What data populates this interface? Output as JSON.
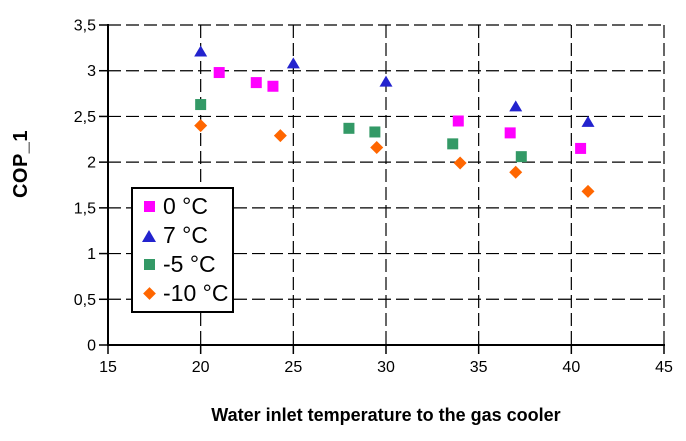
{
  "chart_data": {
    "type": "scatter",
    "title": "",
    "xlabel": "Water inlet temperature to the gas cooler",
    "ylabel": "COP_1",
    "xlim": [
      15,
      45
    ],
    "ylim": [
      0,
      3.5
    ],
    "x_ticks": [
      15,
      20,
      25,
      30,
      35,
      40,
      45
    ],
    "x_tick_labels": [
      "15",
      "20",
      "25",
      "30",
      "35",
      "40",
      "45"
    ],
    "y_ticks": [
      0,
      0.5,
      1,
      1.5,
      2,
      2.5,
      3,
      3.5
    ],
    "y_tick_labels": [
      "0",
      "0,5",
      "1",
      "1,5",
      "2",
      "2,5",
      "3",
      "3,5"
    ],
    "grid": "dashed-both-axes",
    "legend_position": "inside-lower-left",
    "axis_color": "#000000",
    "series": [
      {
        "name": "0 °C",
        "marker": "square",
        "color": "#FF00FF",
        "points": [
          [
            21,
            2.98
          ],
          [
            23,
            2.87
          ],
          [
            23.9,
            2.83
          ],
          [
            33.9,
            2.45
          ],
          [
            36.7,
            2.32
          ],
          [
            40.5,
            2.15
          ]
        ]
      },
      {
        "name": "7 °C",
        "marker": "triangle",
        "color": "#2323CE",
        "points": [
          [
            20,
            3.21
          ],
          [
            25,
            3.08
          ],
          [
            30,
            2.88
          ],
          [
            37,
            2.61
          ],
          [
            40.9,
            2.44
          ]
        ]
      },
      {
        "name": "-5 °C",
        "marker": "square",
        "color": "#339966",
        "points": [
          [
            20,
            2.63
          ],
          [
            28,
            2.37
          ],
          [
            29.4,
            2.33
          ],
          [
            33.6,
            2.2
          ],
          [
            37.3,
            2.06
          ]
        ]
      },
      {
        "name": "-10 °C",
        "marker": "diamond",
        "color": "#FF6600",
        "points": [
          [
            20,
            2.4
          ],
          [
            24.3,
            2.29
          ],
          [
            29.5,
            2.16
          ],
          [
            34,
            1.99
          ],
          [
            37,
            1.89
          ],
          [
            40.9,
            1.68
          ]
        ]
      }
    ]
  }
}
